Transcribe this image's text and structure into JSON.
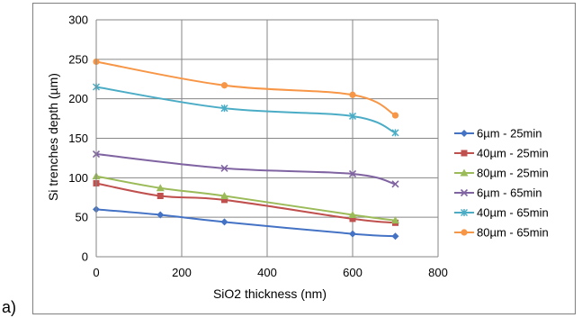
{
  "figure": {
    "panel_label": "a)"
  },
  "chart_data": {
    "type": "line",
    "xlabel": "SiO2 thickness (nm)",
    "ylabel": "Si trenches depth (µm)",
    "xlim": [
      0,
      800
    ],
    "ylim": [
      0,
      300
    ],
    "xticks": [
      0,
      200,
      400,
      600,
      800
    ],
    "yticks": [
      0,
      50,
      100,
      150,
      200,
      250,
      300
    ],
    "grid": true,
    "legend_position": "right",
    "series": [
      {
        "name": "6µm - 25min",
        "color": "#4472C4",
        "marker": "diamond",
        "x": [
          0,
          150,
          300,
          600,
          700
        ],
        "y": [
          60,
          53,
          44,
          29,
          26
        ]
      },
      {
        "name": "40µm - 25min",
        "color": "#C0504D",
        "marker": "square",
        "x": [
          0,
          150,
          300,
          600,
          700
        ],
        "y": [
          93,
          77,
          72,
          48,
          43
        ]
      },
      {
        "name": "80µm - 25min",
        "color": "#9BBB59",
        "marker": "triangle",
        "x": [
          0,
          150,
          300,
          600,
          700
        ],
        "y": [
          102,
          87,
          77,
          53,
          46
        ]
      },
      {
        "name": "6µm - 65min",
        "color": "#8064A2",
        "marker": "x",
        "x": [
          0,
          300,
          600,
          700
        ],
        "y": [
          130,
          112,
          105,
          92
        ]
      },
      {
        "name": "40µm - 65min",
        "color": "#4BACC6",
        "marker": "star",
        "x": [
          0,
          300,
          600,
          700
        ],
        "y": [
          215,
          188,
          178,
          157
        ]
      },
      {
        "name": "80µm - 65min",
        "color": "#F79646",
        "marker": "circle",
        "x": [
          0,
          300,
          600,
          700
        ],
        "y": [
          247,
          217,
          205,
          179
        ]
      }
    ]
  }
}
